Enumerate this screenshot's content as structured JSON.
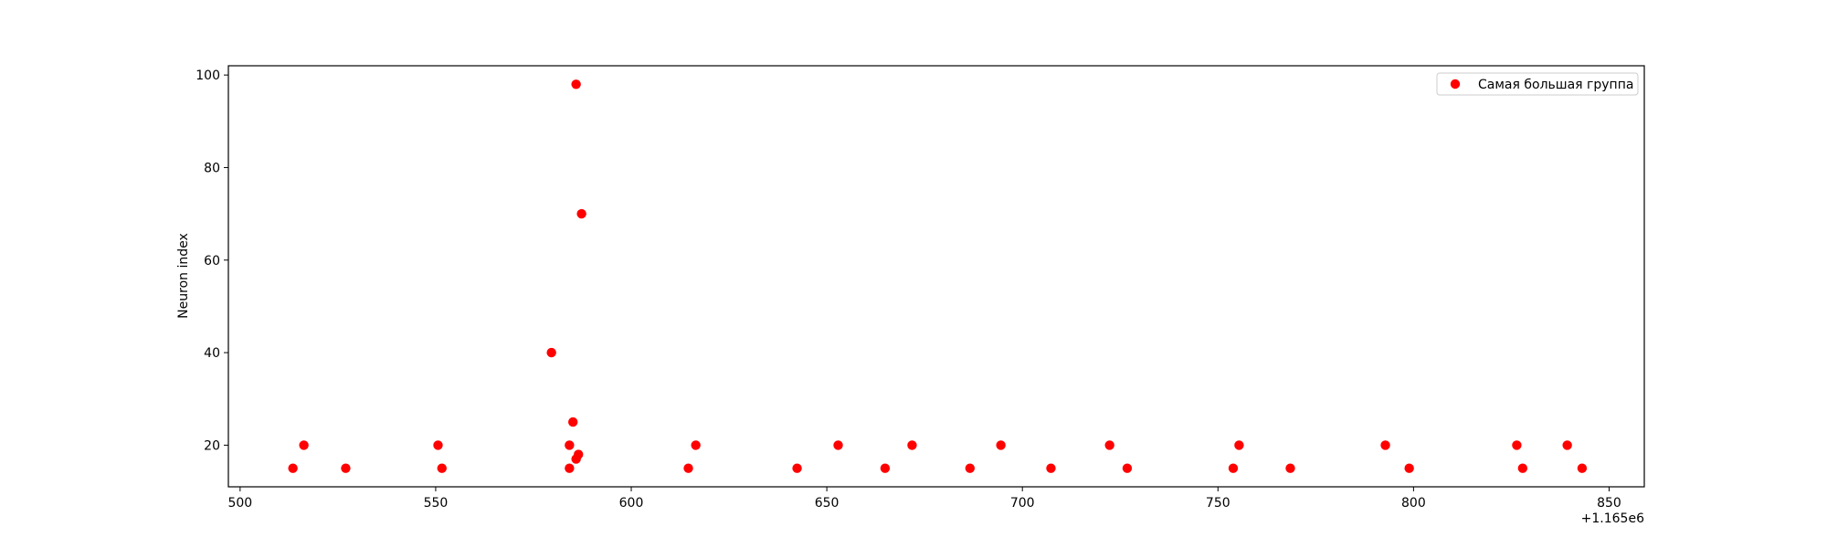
{
  "chart_data": {
    "type": "scatter",
    "title": "",
    "xlabel": "",
    "ylabel": "Neuron index",
    "x_offset_label": "+1.165e6",
    "xlim": [
      1165497,
      1165859
    ],
    "ylim": [
      11,
      102
    ],
    "x_ticks": [
      500,
      550,
      600,
      650,
      700,
      750,
      800,
      850
    ],
    "y_ticks": [
      20,
      40,
      60,
      80,
      100
    ],
    "grid": false,
    "legend_position": "top-right",
    "series": [
      {
        "name": "Самая большая группа",
        "color": "#ff0000",
        "marker": "circle",
        "points": [
          [
            1165513.5,
            15
          ],
          [
            1165516.3,
            20
          ],
          [
            1165527,
            15
          ],
          [
            1165550.6,
            20
          ],
          [
            1165551.6,
            15
          ],
          [
            1165579.6,
            40
          ],
          [
            1165584.2,
            15
          ],
          [
            1165584.2,
            20
          ],
          [
            1165585.1,
            25
          ],
          [
            1165585.9,
            17
          ],
          [
            1165585.9,
            98
          ],
          [
            1165586.5,
            18
          ],
          [
            1165587.3,
            70
          ],
          [
            1165614.6,
            15
          ],
          [
            1165616.5,
            20
          ],
          [
            1165642.4,
            15
          ],
          [
            1165652.9,
            20
          ],
          [
            1165664.9,
            15
          ],
          [
            1165671.8,
            20
          ],
          [
            1165686.6,
            15
          ],
          [
            1165694.5,
            20
          ],
          [
            1165707.3,
            15
          ],
          [
            1165722.3,
            20
          ],
          [
            1165726.8,
            15
          ],
          [
            1165753.9,
            15
          ],
          [
            1165755.4,
            20
          ],
          [
            1165768.5,
            15
          ],
          [
            1165792.8,
            20
          ],
          [
            1165798.9,
            15
          ],
          [
            1165826.4,
            20
          ],
          [
            1165827.9,
            15
          ],
          [
            1165839.3,
            20
          ],
          [
            1165843.1,
            15
          ]
        ]
      }
    ]
  }
}
